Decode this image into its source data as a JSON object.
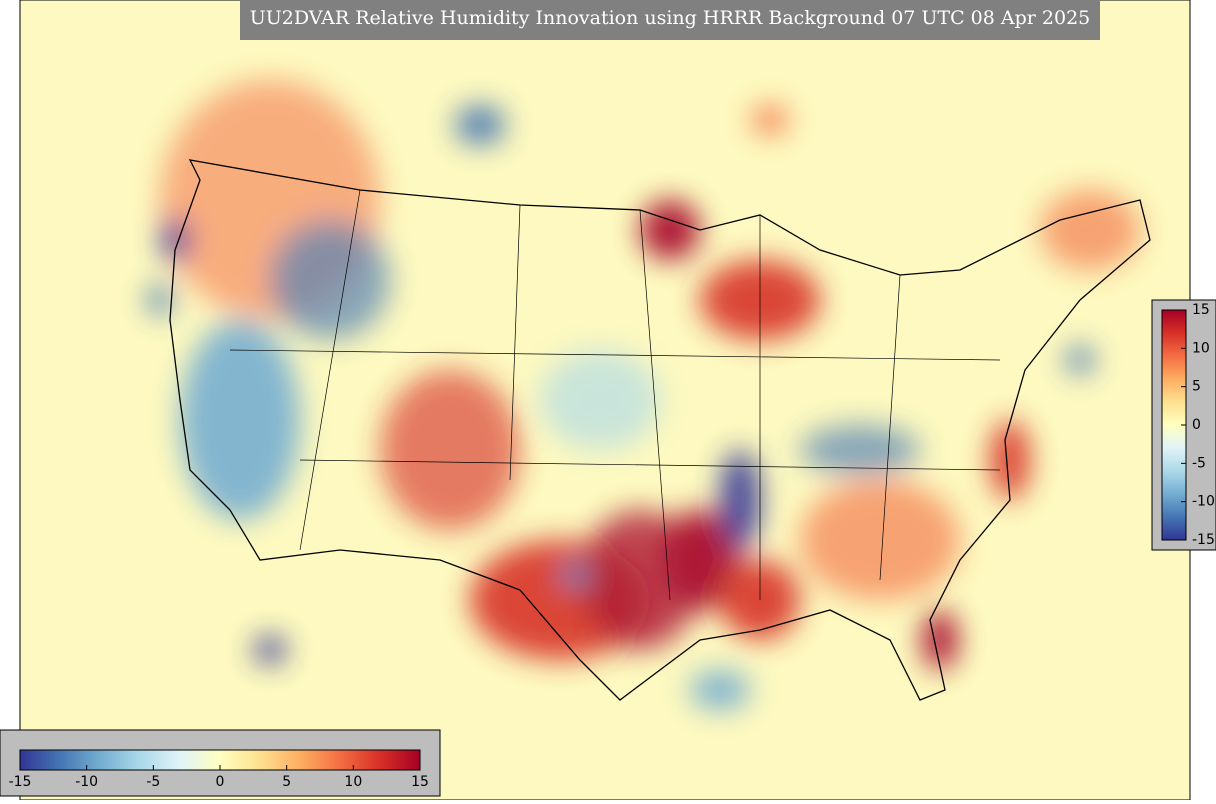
{
  "title": "UU2DVAR Relative Humidity Innovation using HRRR Background 07 UTC 08 Apr 2025",
  "colorbars": [
    {
      "orientation": "vertical",
      "range": [
        -15,
        15
      ],
      "ticks": [
        15,
        10,
        5,
        0,
        -5,
        -10,
        -15
      ],
      "colors": [
        "#313695",
        "#4575b4",
        "#74add1",
        "#abd9e9",
        "#e0f3f8",
        "#ffffbf",
        "#fee090",
        "#fdae61",
        "#f46d43",
        "#d73027",
        "#a50026"
      ]
    },
    {
      "orientation": "horizontal",
      "range": [
        -15,
        15
      ],
      "ticks": [
        -15,
        -10,
        -5,
        0,
        5,
        10,
        15
      ],
      "colors": [
        "#313695",
        "#4575b4",
        "#74add1",
        "#abd9e9",
        "#e0f3f8",
        "#ffffbf",
        "#fee090",
        "#fdae61",
        "#f46d43",
        "#d73027",
        "#a50026"
      ]
    }
  ]
}
